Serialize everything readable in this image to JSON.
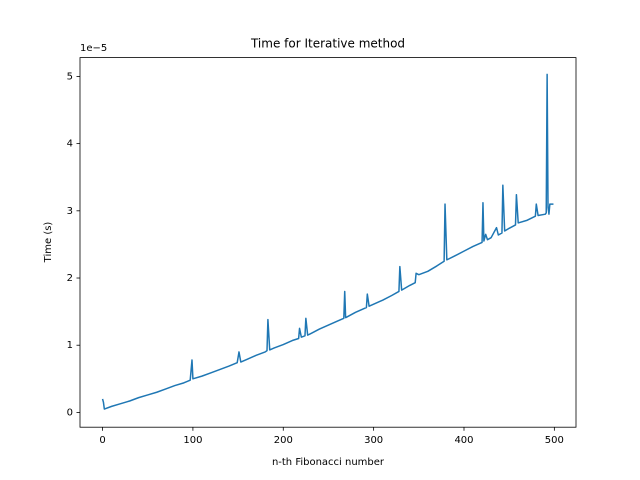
{
  "chart_data": {
    "type": "line",
    "title": "Time for Iterative method",
    "xlabel": "n-th Fibonacci number",
    "ylabel": "Time (s)",
    "y_offset_label": "1e−5",
    "x": [
      0,
      1,
      2,
      10,
      20,
      30,
      40,
      50,
      60,
      70,
      80,
      90,
      97,
      99,
      100,
      110,
      120,
      130,
      140,
      149,
      151,
      153,
      160,
      170,
      180,
      182,
      183,
      185,
      190,
      200,
      210,
      217,
      218,
      220,
      224,
      225,
      227,
      230,
      240,
      250,
      260,
      267,
      268,
      269,
      280,
      290,
      292,
      293,
      295,
      300,
      310,
      320,
      328,
      329,
      331,
      340,
      346,
      347,
      350,
      360,
      370,
      378,
      379,
      381,
      390,
      400,
      410,
      420,
      421,
      422,
      424,
      426,
      430,
      436,
      438,
      442,
      443,
      445,
      450,
      457,
      458,
      460,
      470,
      479,
      480,
      482,
      490,
      491,
      492,
      493,
      494,
      495,
      499
    ],
    "series": [
      {
        "name": "Iterative",
        "color": "#1f77b4",
        "values": [
          0.2,
          0.15,
          0.05,
          0.09,
          0.13,
          0.17,
          0.22,
          0.26,
          0.3,
          0.35,
          0.4,
          0.44,
          0.48,
          0.78,
          0.5,
          0.54,
          0.59,
          0.64,
          0.69,
          0.74,
          0.9,
          0.75,
          0.79,
          0.85,
          0.9,
          0.92,
          1.38,
          0.93,
          0.96,
          1.01,
          1.07,
          1.1,
          1.25,
          1.12,
          1.14,
          1.4,
          1.15,
          1.17,
          1.24,
          1.3,
          1.36,
          1.4,
          1.8,
          1.41,
          1.49,
          1.55,
          1.56,
          1.76,
          1.58,
          1.61,
          1.67,
          1.74,
          1.8,
          2.17,
          1.82,
          1.89,
          1.93,
          2.07,
          2.05,
          2.1,
          2.18,
          2.25,
          3.1,
          2.27,
          2.33,
          2.4,
          2.47,
          2.53,
          3.12,
          2.55,
          2.65,
          2.57,
          2.6,
          2.75,
          2.64,
          2.67,
          3.38,
          2.7,
          2.74,
          2.79,
          3.24,
          2.82,
          2.86,
          2.92,
          3.1,
          2.93,
          2.95,
          2.97,
          5.03,
          3.05,
          2.95,
          3.1,
          3.1
        ]
      }
    ],
    "xlim": [
      -24.95,
      523.95
    ],
    "ylim": [
      -0.22,
      5.28
    ],
    "xticks": [
      0,
      100,
      200,
      300,
      400,
      500
    ],
    "yticks": [
      0,
      1,
      2,
      3,
      4,
      5
    ]
  }
}
